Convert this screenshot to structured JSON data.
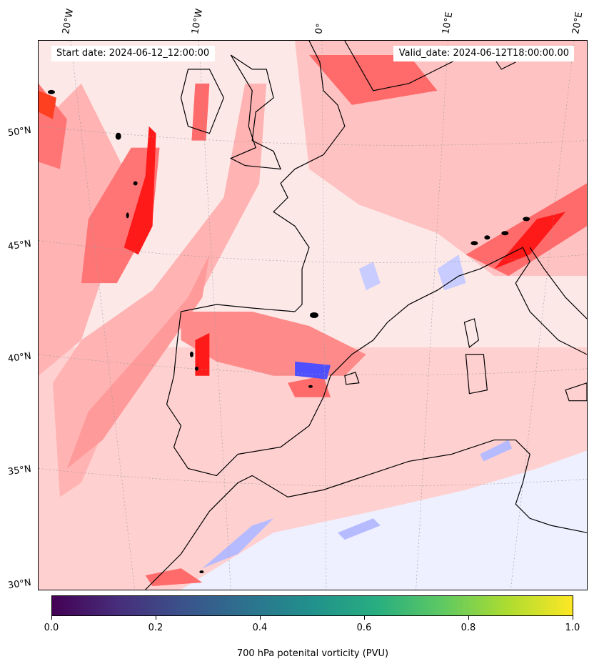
{
  "map": {
    "start_date": "Start date: 2024-06-12_12:00:00",
    "valid_date": "Valid_date: 2024-06-12T18:00:00.00",
    "lon_labels": [
      "20°W",
      "10°W",
      "0°",
      "10°E",
      "20°E"
    ],
    "lat_labels": [
      "50°N",
      "45°N",
      "40°N",
      "35°N",
      "30°N"
    ],
    "fill_colors": {
      "background_light_pink": "#fde8e8",
      "pink": "#ffb3b3",
      "medium_red": "#ff7575",
      "strong_red": "#ff1a1a",
      "light_blue": "#e6e9ff",
      "blue": "#5a5aff",
      "coastline": "#000000"
    }
  },
  "colorbar": {
    "ticks": [
      "0.0",
      "0.2",
      "0.4",
      "0.6",
      "0.8",
      "1.0"
    ],
    "title": "700 hPa potenital vorticity (PVU)",
    "colormap": "viridis",
    "range": [
      0.0,
      1.0
    ]
  }
}
